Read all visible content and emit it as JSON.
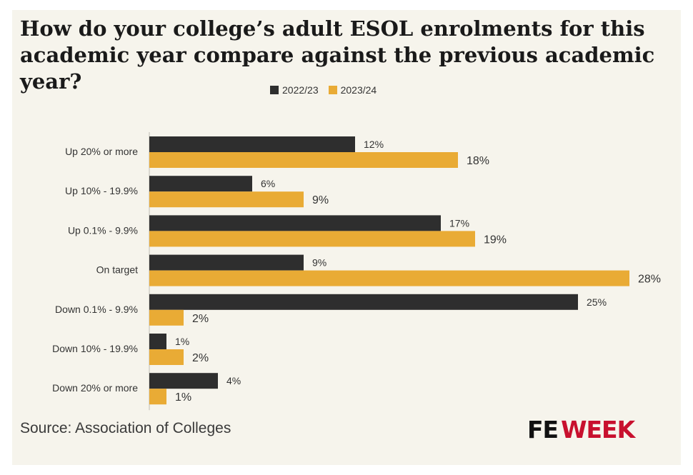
{
  "title": "How do your college’s adult ESOL enrolments for this academic year compare against the previous academic year?",
  "source": "Source: Association of Colleges",
  "brand": {
    "part1": "FE",
    "part2": "WEEK"
  },
  "colors": {
    "series1": "#2e2e2e",
    "series2": "#e9ab35",
    "brand_red": "#c8102e"
  },
  "chart_data": {
    "type": "bar",
    "orientation": "horizontal",
    "categories": [
      "Up 20% or more",
      "Up 10% - 19.9%",
      "Up 0.1% - 9.9%",
      "On target",
      "Down 0.1% - 9.9%",
      "Down 10% - 19.9%",
      "Down 20% or more"
    ],
    "series": [
      {
        "name": "2022/23",
        "values": [
          12,
          6,
          17,
          9,
          25,
          1,
          4
        ],
        "labels": [
          "12%",
          "6%",
          "17%",
          "9%",
          "25%",
          "1%",
          "4%"
        ]
      },
      {
        "name": "2023/24",
        "values": [
          18,
          9,
          19,
          28,
          2,
          2,
          1
        ],
        "labels": [
          "18%",
          "9%",
          "19%",
          "28%",
          "2%",
          "2%",
          "1%"
        ]
      }
    ],
    "xlim": [
      0,
      28
    ],
    "grid": false,
    "legend_position": "top-center"
  }
}
